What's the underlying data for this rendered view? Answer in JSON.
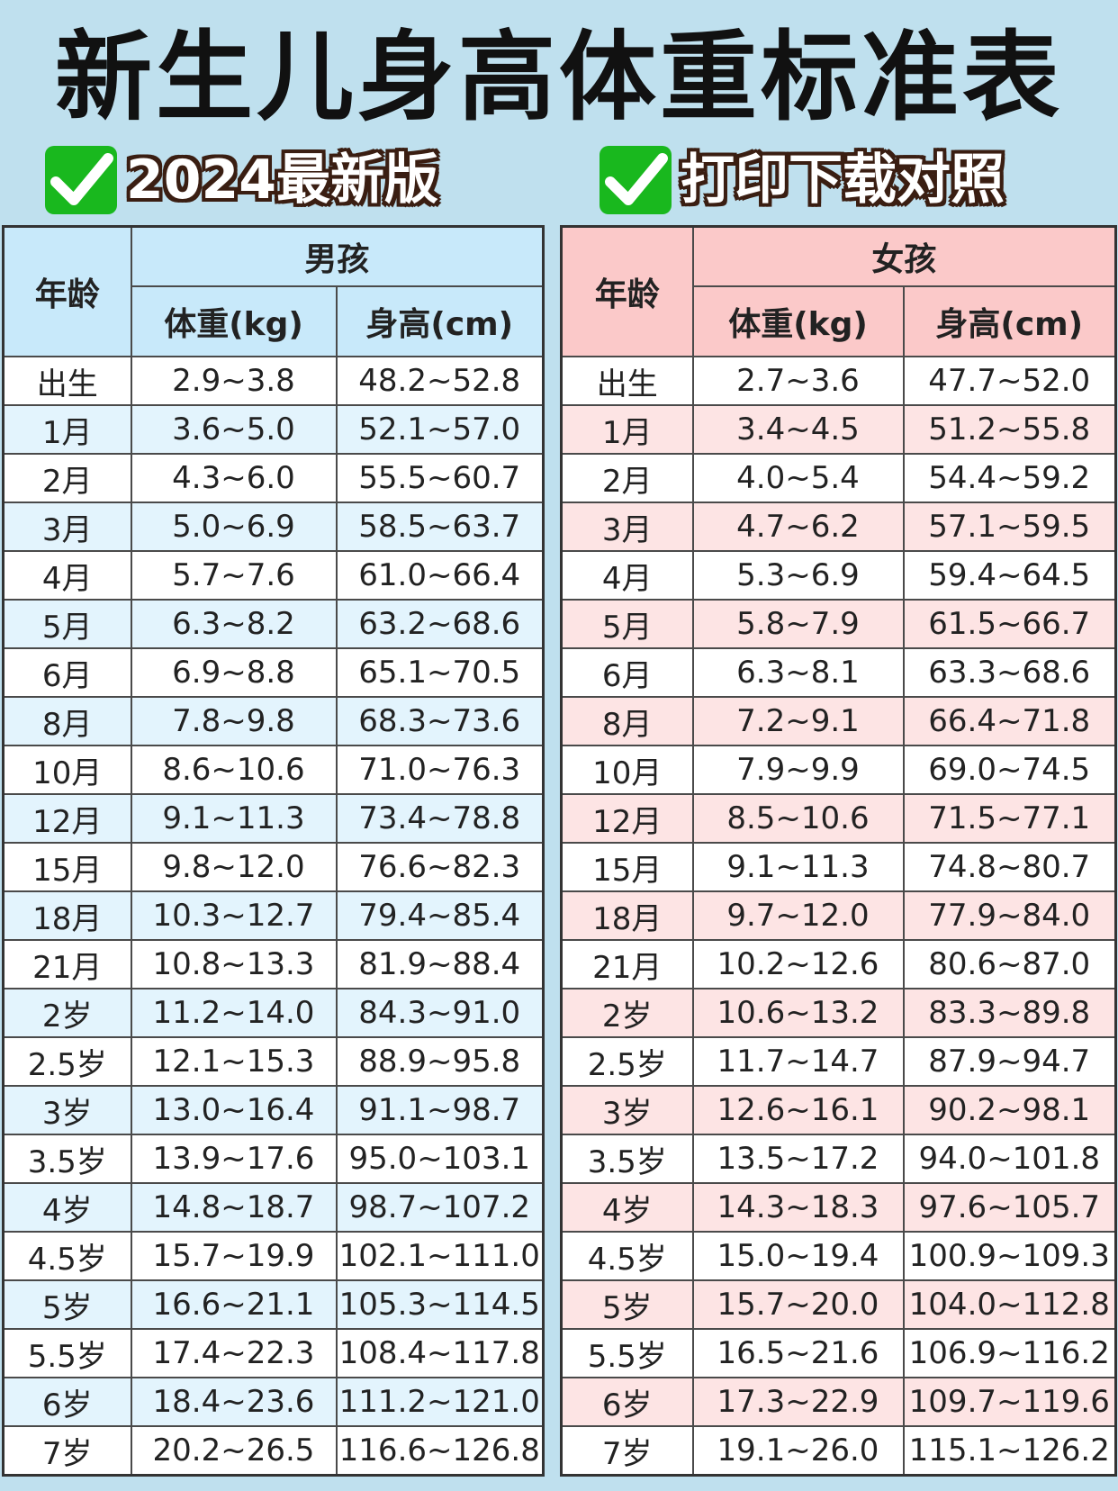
{
  "title": "新生儿身高体重标准表",
  "badges": {
    "left": "2024最新版",
    "right": "打印下载对照",
    "icon": "check-icon"
  },
  "colors": {
    "background": "#bfe0ee",
    "boy_header": "#c8e9fa",
    "girl_header": "#fbc9c9",
    "check": "#19b81e"
  },
  "boys": {
    "age_header": "年龄",
    "group_header": "男孩",
    "weight_header": "体重(kg)",
    "height_header": "身高(cm)",
    "rows": [
      [
        "出生",
        "2.9~3.8",
        "48.2~52.8"
      ],
      [
        "1月",
        "3.6~5.0",
        "52.1~57.0"
      ],
      [
        "2月",
        "4.3~6.0",
        "55.5~60.7"
      ],
      [
        "3月",
        "5.0~6.9",
        "58.5~63.7"
      ],
      [
        "4月",
        "5.7~7.6",
        "61.0~66.4"
      ],
      [
        "5月",
        "6.3~8.2",
        "63.2~68.6"
      ],
      [
        "6月",
        "6.9~8.8",
        "65.1~70.5"
      ],
      [
        "8月",
        "7.8~9.8",
        "68.3~73.6"
      ],
      [
        "10月",
        "8.6~10.6",
        "71.0~76.3"
      ],
      [
        "12月",
        "9.1~11.3",
        "73.4~78.8"
      ],
      [
        "15月",
        "9.8~12.0",
        "76.6~82.3"
      ],
      [
        "18月",
        "10.3~12.7",
        "79.4~85.4"
      ],
      [
        "21月",
        "10.8~13.3",
        "81.9~88.4"
      ],
      [
        "2岁",
        "11.2~14.0",
        "84.3~91.0"
      ],
      [
        "2.5岁",
        "12.1~15.3",
        "88.9~95.8"
      ],
      [
        "3岁",
        "13.0~16.4",
        "91.1~98.7"
      ],
      [
        "3.5岁",
        "13.9~17.6",
        "95.0~103.1"
      ],
      [
        "4岁",
        "14.8~18.7",
        "98.7~107.2"
      ],
      [
        "4.5岁",
        "15.7~19.9",
        "102.1~111.0"
      ],
      [
        "5岁",
        "16.6~21.1",
        "105.3~114.5"
      ],
      [
        "5.5岁",
        "17.4~22.3",
        "108.4~117.8"
      ],
      [
        "6岁",
        "18.4~23.6",
        "111.2~121.0"
      ],
      [
        "7岁",
        "20.2~26.5",
        "116.6~126.8"
      ]
    ]
  },
  "girls": {
    "age_header": "年龄",
    "group_header": "女孩",
    "weight_header": "体重(kg)",
    "height_header": "身高(cm)",
    "rows": [
      [
        "出生",
        "2.7~3.6",
        "47.7~52.0"
      ],
      [
        "1月",
        "3.4~4.5",
        "51.2~55.8"
      ],
      [
        "2月",
        "4.0~5.4",
        "54.4~59.2"
      ],
      [
        "3月",
        "4.7~6.2",
        "57.1~59.5"
      ],
      [
        "4月",
        "5.3~6.9",
        "59.4~64.5"
      ],
      [
        "5月",
        "5.8~7.9",
        "61.5~66.7"
      ],
      [
        "6月",
        "6.3~8.1",
        "63.3~68.6"
      ],
      [
        "8月",
        "7.2~9.1",
        "66.4~71.8"
      ],
      [
        "10月",
        "7.9~9.9",
        "69.0~74.5"
      ],
      [
        "12月",
        "8.5~10.6",
        "71.5~77.1"
      ],
      [
        "15月",
        "9.1~11.3",
        "74.8~80.7"
      ],
      [
        "18月",
        "9.7~12.0",
        "77.9~84.0"
      ],
      [
        "21月",
        "10.2~12.6",
        "80.6~87.0"
      ],
      [
        "2岁",
        "10.6~13.2",
        "83.3~89.8"
      ],
      [
        "2.5岁",
        "11.7~14.7",
        "87.9~94.7"
      ],
      [
        "3岁",
        "12.6~16.1",
        "90.2~98.1"
      ],
      [
        "3.5岁",
        "13.5~17.2",
        "94.0~101.8"
      ],
      [
        "4岁",
        "14.3~18.3",
        "97.6~105.7"
      ],
      [
        "4.5岁",
        "15.0~19.4",
        "100.9~109.3"
      ],
      [
        "5岁",
        "15.7~20.0",
        "104.0~112.8"
      ],
      [
        "5.5岁",
        "16.5~21.6",
        "106.9~116.2"
      ],
      [
        "6岁",
        "17.3~22.9",
        "109.7~119.6"
      ],
      [
        "7岁",
        "19.1~26.0",
        "115.1~126.2"
      ]
    ]
  }
}
